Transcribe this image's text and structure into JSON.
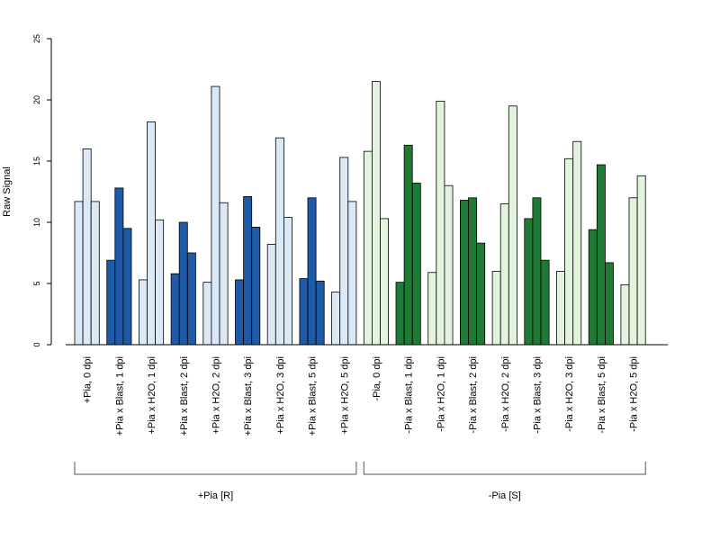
{
  "chart_data": {
    "type": "bar",
    "ylabel": "Raw Signal",
    "ylim": [
      0,
      25
    ],
    "yticks": [
      0,
      5,
      10,
      15,
      20,
      25
    ],
    "categories": [
      "+Pia, 0 dpi",
      "+Pia x Blast, 1 dpi",
      "+Pia x H2O, 1 dpi",
      "+Pia x Blast, 2 dpi",
      "+Pia x H2O, 2 dpi",
      "+Pia x Blast, 3 dpi",
      "+Pia x H2O, 3 dpi",
      "+Pia x Blast, 5 dpi",
      "+Pia x H2O, 5 dpi",
      "-Pia, 0 dpi",
      "-Pia x Blast, 1 dpi",
      "-Pia x H2O, 1 dpi",
      "-Pia x Blast, 2 dpi",
      "-Pia x H2O, 2 dpi",
      "-Pia x Blast, 3 dpi",
      "-Pia x H2O, 3 dpi",
      "-Pia x Blast, 5 dpi",
      "-Pia x H2O, 5 dpi"
    ],
    "replicates": [
      [
        11.7,
        16.0,
        11.7
      ],
      [
        6.9,
        12.8,
        9.5
      ],
      [
        5.3,
        18.2,
        10.2
      ],
      [
        5.8,
        10.0,
        7.5
      ],
      [
        5.1,
        21.1,
        11.6
      ],
      [
        5.3,
        12.1,
        9.6
      ],
      [
        8.2,
        16.9,
        10.4
      ],
      [
        5.4,
        12.0,
        5.2
      ],
      [
        4.3,
        15.3,
        11.7
      ],
      [
        15.8,
        21.5,
        10.3
      ],
      [
        5.1,
        16.3,
        13.2
      ],
      [
        5.9,
        19.9,
        13.0
      ],
      [
        11.8,
        12.0,
        8.3
      ],
      [
        6.0,
        11.5,
        19.5
      ],
      [
        10.3,
        12.0,
        6.9
      ],
      [
        6.0,
        15.2,
        16.6
      ],
      [
        9.4,
        14.7,
        6.7
      ],
      [
        4.9,
        12.0,
        13.8
      ]
    ],
    "bar_colors": [
      "#dbe8f6",
      "#1e5aa8",
      "#dbe8f6",
      "#1e5aa8",
      "#dbe8f6",
      "#1e5aa8",
      "#dbe8f6",
      "#1e5aa8",
      "#dbe8f6",
      "#e3f4de",
      "#1f7a35",
      "#e3f4de",
      "#1f7a35",
      "#e3f4de",
      "#1f7a35",
      "#e3f4de",
      "#1f7a35",
      "#e3f4de"
    ],
    "groups": [
      {
        "label": "+Pia [R]",
        "from_category": 0,
        "to_category": 8
      },
      {
        "label": "-Pia [S]",
        "from_category": 9,
        "to_category": 17
      }
    ],
    "legend": "none",
    "grid": false
  }
}
